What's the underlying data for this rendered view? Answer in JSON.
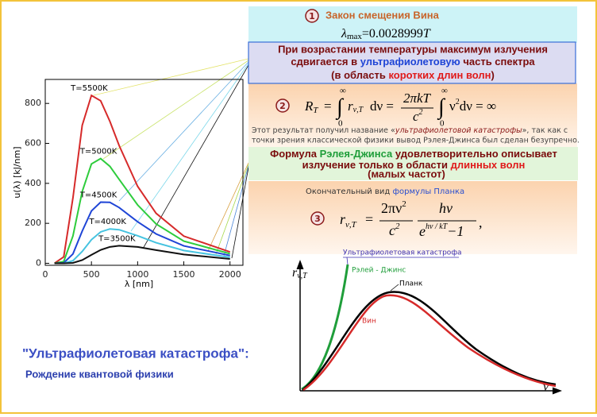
{
  "chart_data": {
    "type": "line",
    "y_label": "u(λ) [kJ/nm]",
    "x_label": "λ [nm]",
    "x": [
      100,
      200,
      300,
      400,
      500,
      600,
      700,
      800,
      1000,
      1200,
      1500,
      2000
    ],
    "series": [
      {
        "name": "T=5500K",
        "color": "#d62a2a",
        "values": [
          0,
          32,
          328,
          690,
          840,
          813,
          710,
          589,
          385,
          250,
          136,
          57
        ]
      },
      {
        "name": "T=5000K",
        "color": "#2ecc3c",
        "values": [
          0,
          9,
          137,
          359,
          497,
          524,
          485,
          420,
          292,
          197,
          111,
          48
        ]
      },
      {
        "name": "T=4500K",
        "color": "#1f45d6",
        "values": [
          0,
          2,
          47,
          161,
          262,
          306,
          305,
          279,
          208,
          147,
          87,
          39
        ]
      },
      {
        "name": "T=4000K",
        "color": "#45c3e0",
        "values": [
          0,
          0,
          13,
          59,
          118,
          157,
          172,
          168,
          138,
          103,
          64,
          30
        ]
      },
      {
        "name": "T=3500K",
        "color": "#111111",
        "values": [
          0,
          0,
          2,
          16,
          42,
          67,
          82,
          88,
          82,
          66,
          44,
          22
        ]
      }
    ],
    "xlim": [
      0,
      2140
    ],
    "ylim": [
      -10,
      920
    ],
    "xticks": [
      0,
      500,
      1000,
      1500,
      2000
    ],
    "yticks": [
      0,
      200,
      400,
      600,
      800
    ]
  },
  "box1": {
    "number": "1",
    "title": "Закон смещения Вина",
    "formula": {
      "lambda": "λ",
      "sub": "max",
      "rest": "=0.0028999",
      "T": "T"
    }
  },
  "box_shift": {
    "line1": "При возрастании температуры максимум излучения",
    "line2": [
      "сдвигается в ",
      "ультрафиолетовую",
      " часть спектра"
    ],
    "line3": [
      "(в область ",
      "коротких длин волн",
      ")"
    ]
  },
  "box2": {
    "number": "2",
    "formula": {
      "lhs": "R",
      "lhs_sub": "T",
      "eq": "=",
      "int": "∫",
      "upper": "∞",
      "lower": "0",
      "integrand": "r",
      "integrand_sub": "ν,T",
      "d": "dν =",
      "num": "2πkT",
      "den": "c",
      "den_sup": "2",
      "integrand2": "ν",
      "sup2": "2",
      "tail": "dν = ∞"
    },
    "paragraph": {
      "line1": [
        "Этот результат получил название «",
        "ультрафиолетовой катастрофы",
        "», так как с"
      ],
      "line2": "точки зрения классической физики вывод Рэлея-Джинса был сделан безупречно."
    }
  },
  "box_rj": {
    "line1": [
      "Формула ",
      "Рэлея-Джинса",
      " удовлетворительно описывает"
    ],
    "line2": [
      "излучение только в области ",
      "длинных волн"
    ],
    "line3": "(малых частот)"
  },
  "planck_intro": [
    "Окончательный вид ",
    "формулы Планка"
  ],
  "box3": {
    "number": "3",
    "formula": {
      "lhs": "r",
      "lhs_sub": "ν,T",
      "eq": "=",
      "num1": "2πν",
      "num1_sup": "2",
      "den1": "c",
      "den1_sup": "2",
      "num2": "hν",
      "den2": "e",
      "den2_sup": "hν / kT",
      "den2_tail": "−1",
      "comma": ","
    }
  },
  "sketch": {
    "y_label": "r",
    "y_label_sub": "ν,T",
    "x_label": "ν",
    "title": "Ультрафиолетовая катастрофа",
    "rj": "Рэлей - Джинс",
    "planck": "Планк",
    "wien": "Вин"
  },
  "footer": {
    "title": "\"Ультрафиолетовая катастрофа\":",
    "subtitle": "Рождение квантовой физики"
  }
}
